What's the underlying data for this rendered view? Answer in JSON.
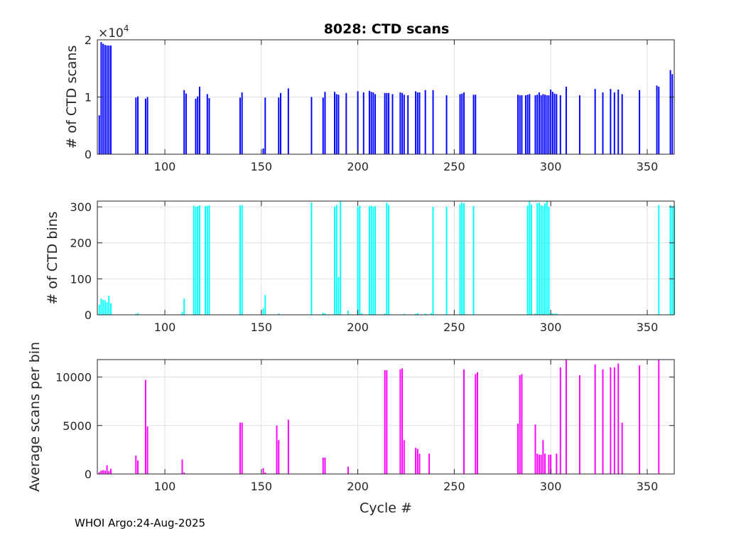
{
  "title": "8028: CTD scans",
  "footer": "WHOI Argo:24-Aug-2025",
  "xlabel": "Cycle #",
  "chart_data": [
    {
      "type": "bar",
      "name": "scans",
      "ylabel": "# of CTD scans",
      "color": "#0000ff",
      "xlim": [
        65,
        364
      ],
      "ylim": [
        0,
        20000
      ],
      "yticks": [
        0,
        10000,
        20000
      ],
      "ytick_labels": [
        "0",
        "1",
        "2"
      ],
      "multiplier_base": "×10",
      "multiplier_exp": "4",
      "xticks": [
        100,
        150,
        200,
        250,
        300,
        350
      ],
      "xtick_labels": [
        "100",
        "150",
        "200",
        "250",
        "300",
        "350"
      ],
      "x": [
        66,
        67,
        68,
        69,
        70,
        71,
        72,
        85,
        86,
        90,
        91,
        110,
        111,
        116,
        117,
        118,
        122,
        123,
        139,
        140,
        151,
        152,
        159,
        160,
        164,
        176,
        182,
        183,
        188,
        189,
        190,
        194,
        200,
        203,
        206,
        207,
        208,
        209,
        214,
        215,
        216,
        218,
        222,
        223,
        224,
        226,
        230,
        231,
        232,
        235,
        239,
        246,
        253,
        254,
        255,
        260,
        261,
        283,
        284,
        285,
        287,
        288,
        289,
        292,
        293,
        294,
        295,
        296,
        297,
        298,
        299,
        300,
        301,
        302,
        303,
        305,
        308,
        315,
        323,
        327,
        331,
        333,
        335,
        337,
        346,
        355,
        356,
        362,
        363
      ],
      "values": [
        6800,
        19600,
        19300,
        19100,
        19000,
        19000,
        19000,
        9900,
        10100,
        9700,
        10000,
        11200,
        10600,
        9700,
        10100,
        11800,
        10500,
        9800,
        9900,
        10800,
        1000,
        9900,
        9900,
        10700,
        11500,
        10000,
        9900,
        10900,
        10900,
        10500,
        10400,
        10700,
        11000,
        10800,
        11100,
        10900,
        10800,
        10500,
        10700,
        10700,
        10700,
        10500,
        10800,
        10700,
        10400,
        10300,
        11000,
        10800,
        10800,
        11200,
        11200,
        10300,
        10500,
        10600,
        10800,
        10400,
        10400,
        10400,
        10300,
        10300,
        10300,
        10400,
        10500,
        10300,
        10400,
        10800,
        10300,
        10500,
        10400,
        10300,
        10300,
        11300,
        10900,
        10600,
        10500,
        10300,
        11800,
        10300,
        11400,
        10800,
        11400,
        10800,
        11300,
        10500,
        11200,
        12000,
        11800,
        14700,
        14000
      ]
    },
    {
      "type": "bar",
      "name": "bins",
      "ylabel": "# of CTD bins",
      "color": "#00ffff",
      "xlim": [
        65,
        364
      ],
      "ylim": [
        0,
        316
      ],
      "yticks": [
        0,
        100,
        200,
        300
      ],
      "ytick_labels": [
        "0",
        "100",
        "200",
        "300"
      ],
      "xticks": [
        100,
        150,
        200,
        250,
        300,
        350
      ],
      "xtick_labels": [
        "100",
        "150",
        "200",
        "250",
        "300",
        "350"
      ],
      "x": [
        66,
        67,
        68,
        69,
        70,
        71,
        72,
        85,
        86,
        109,
        110,
        115,
        116,
        117,
        118,
        121,
        122,
        123,
        139,
        140,
        151,
        152,
        159,
        176,
        182,
        183,
        188,
        189,
        190,
        191,
        195,
        200,
        201,
        202,
        206,
        207,
        208,
        209,
        214,
        215,
        216,
        224,
        230,
        231,
        235,
        238,
        239,
        246,
        253,
        254,
        255,
        260,
        288,
        289,
        290,
        292,
        293,
        294,
        295,
        296,
        297,
        298,
        299,
        300,
        301,
        302,
        303,
        356,
        362,
        363,
        364
      ],
      "values": [
        28,
        45,
        42,
        40,
        35,
        53,
        32,
        3,
        5,
        8,
        45,
        303,
        300,
        302,
        304,
        302,
        303,
        304,
        304,
        305,
        18,
        55,
        4,
        312,
        6,
        4,
        300,
        305,
        105,
        316,
        12,
        300,
        303,
        4,
        302,
        303,
        300,
        302,
        4,
        312,
        305,
        3,
        3,
        5,
        4,
        5,
        300,
        300,
        307,
        312,
        310,
        302,
        303,
        316,
        307,
        4,
        310,
        312,
        305,
        302,
        310,
        316,
        300,
        4,
        4,
        3,
        4,
        305,
        305,
        300,
        303
      ]
    },
    {
      "type": "bar",
      "name": "avg",
      "ylabel": "Average scans per bin",
      "color": "#ff00ff",
      "xlim": [
        65,
        364
      ],
      "ylim": [
        0,
        11800
      ],
      "yticks": [
        0,
        5000,
        10000
      ],
      "ytick_labels": [
        "0",
        "5000",
        "10000"
      ],
      "xticks": [
        100,
        150,
        200,
        250,
        300,
        350
      ],
      "xtick_labels": [
        "100",
        "150",
        "200",
        "250",
        "300",
        "350"
      ],
      "x": [
        66,
        67,
        68,
        69,
        70,
        71,
        72,
        85,
        86,
        90,
        91,
        109,
        110,
        139,
        140,
        151,
        152,
        158,
        159,
        164,
        182,
        183,
        195,
        214,
        215,
        222,
        223,
        224,
        230,
        231,
        232,
        237,
        255,
        261,
        262,
        283,
        284,
        285,
        292,
        293,
        294,
        295,
        296,
        297,
        299,
        300,
        303,
        305,
        308,
        315,
        323,
        327,
        331,
        333,
        335,
        337,
        346,
        356
      ],
      "values": [
        200,
        350,
        400,
        350,
        900,
        300,
        550,
        1900,
        1400,
        9700,
        4900,
        1500,
        150,
        5300,
        5300,
        600,
        150,
        5000,
        3500,
        5600,
        1700,
        1700,
        750,
        10700,
        10700,
        10800,
        10900,
        3500,
        2700,
        2600,
        2100,
        2100,
        10800,
        10300,
        10500,
        5200,
        10200,
        10300,
        5100,
        2100,
        2000,
        2000,
        3500,
        2100,
        2000,
        2000,
        2100,
        11000,
        11800,
        10200,
        11300,
        10800,
        11000,
        11000,
        11400,
        5300,
        11200,
        11800
      ]
    }
  ]
}
